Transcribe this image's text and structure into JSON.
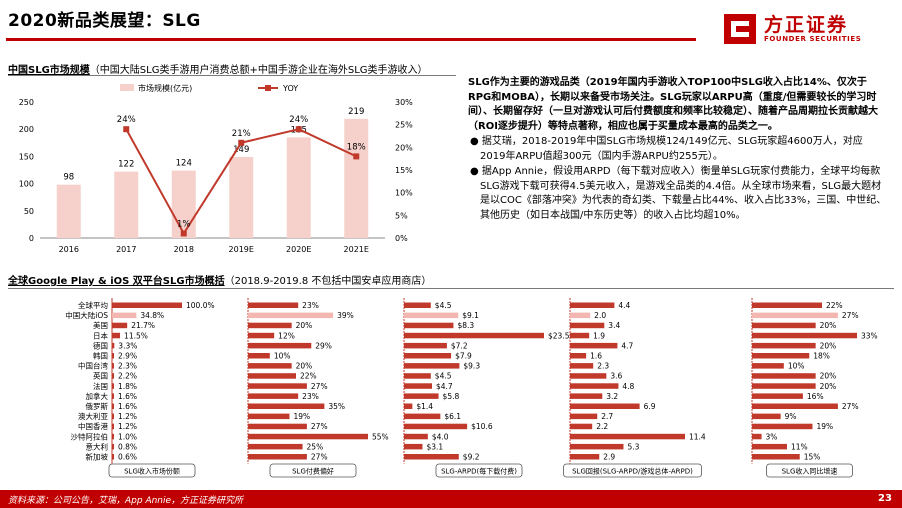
{
  "header": {
    "title": "2020新品类展望：SLG",
    "logo_cn": "方正证券",
    "logo_en": "FOUNDER SECURITIES"
  },
  "top_chart_title": {
    "bold": "中国SLG市场规模",
    "rest": "（中国大陆SLG类手游用户消费总额+中国手游企业在海外SLG类手游收入）"
  },
  "bottom_chart_title": {
    "bold": "全球Google Play & iOS 双平台SLG市场概括",
    "rest": "（2018.9-2019.8 不包括中国安卓应用商店）"
  },
  "right_text": {
    "intro": "SLG作为主要的游戏品类（2019年国内手游收入TOP100中SLG收入占比14%、仅次于RPG和MOBA），长期以来备受市场关注。SLG玩家以ARPU高（重度/但需要较长的学习时间）、长期留存好（一旦对游戏认可后付费额度和频率比较稳定）、随着产品周期拉长贡献越大（ROI逐步提升）等特点著称，相应也属于买量成本最高的品类之一。",
    "bullet1": "据艾瑞，2018-2019年中国SLG市场规模124/149亿元、SLG玩家超4600万人，对应2019年ARPU值超300元（国内手游ARPU约255元）。",
    "bullet2": "据App Annie，假设用ARPD（每下载对应收入）衡量单SLG玩家付费能力，全球平均每款SLG游戏下载可获得4.5美元收入，是游戏全品类的4.4倍。从全球市场来看，SLG最大题材是以COC《部落冲突》为代表的奇幻类、下载量占比44%、收入占比33%，三国、中世纪、其他历史（如日本战国/中东历史等）的收入占比均超10%。"
  },
  "chart_data": [
    {
      "type": "bar",
      "title": "",
      "categories": [
        "2016",
        "2017",
        "2018",
        "2019E",
        "2020E",
        "2021E"
      ],
      "series": [
        {
          "name": "市场规模(亿元)",
          "type": "bar",
          "values": [
            98,
            122,
            124,
            149,
            185,
            219
          ],
          "color": "#f6d1cc"
        },
        {
          "name": "YOY",
          "type": "line",
          "axis": "right",
          "values": [
            null,
            24,
            1,
            21,
            24,
            18
          ],
          "color": "#c0392b"
        }
      ],
      "ylim": [
        0,
        250
      ],
      "yticks": [
        "0",
        "50",
        "100",
        "150",
        "200",
        "250"
      ],
      "y2lim": [
        0,
        30
      ],
      "y2ticks": [
        "0%",
        "5%",
        "10%",
        "15%",
        "20%",
        "25%",
        "30%"
      ],
      "yoy_labels": [
        "",
        "24%",
        "1%",
        "21%",
        "24%",
        "18%"
      ],
      "legend": "top"
    },
    {
      "type": "bar",
      "orientation": "horizontal",
      "categories": [
        "全球平均",
        "中国大陆iOS",
        "美国",
        "日本",
        "德国",
        "韩国",
        "中国台湾",
        "英国",
        "法国",
        "加拿大",
        "俄罗斯",
        "澳大利亚",
        "中国香港",
        "沙特阿拉伯",
        "意大利",
        "新加坡"
      ],
      "panels": [
        {
          "name": "SLG收入市场份额",
          "values": [
            100.0,
            34.8,
            21.7,
            11.5,
            3.3,
            2.9,
            2.3,
            2.2,
            1.8,
            1.6,
            1.6,
            1.2,
            1.2,
            1.0,
            0.8,
            0.6
          ],
          "labels": [
            "100.0%",
            "34.8%",
            "21.7%",
            "11.5%",
            "3.3%",
            "2.9%",
            "2.3%",
            "2.2%",
            "1.8%",
            "1.6%",
            "1.6%",
            "1.2%",
            "1.2%",
            "1.0%",
            "0.8%",
            "0.6%"
          ],
          "max": 100
        },
        {
          "name": "SLG付费偏好",
          "values": [
            23,
            39,
            20,
            12,
            29,
            10,
            20,
            22,
            27,
            23,
            35,
            19,
            27,
            55,
            25,
            27
          ],
          "labels": [
            "23%",
            "39%",
            "20%",
            "12%",
            "29%",
            "10%",
            "20%",
            "22%",
            "27%",
            "23%",
            "35%",
            "19%",
            "27%",
            "55%",
            "25%",
            "27%"
          ],
          "max": 55
        },
        {
          "name": "SLG-ARPD(每下载付费)",
          "values": [
            4.5,
            9.1,
            8.3,
            23.5,
            7.2,
            7.9,
            9.3,
            4.5,
            4.7,
            5.8,
            1.4,
            6.1,
            10.6,
            4.0,
            3.1,
            9.2
          ],
          "labels": [
            "$4.5",
            "$9.1",
            "$8.3",
            "$23.5",
            "$7.2",
            "$7.9",
            "$9.3",
            "$4.5",
            "$4.7",
            "$5.8",
            "$1.4",
            "$6.1",
            "$10.6",
            "$4.0",
            "$3.1",
            "$9.2"
          ],
          "max": 23.5
        },
        {
          "name": "SLG回报(SLG-ARPD/游戏总体-ARPD)",
          "values": [
            4.4,
            2.0,
            3.4,
            1.9,
            4.7,
            1.6,
            2.3,
            3.6,
            4.8,
            3.2,
            6.9,
            2.7,
            2.2,
            11.4,
            5.3,
            2.9
          ],
          "labels": [
            "4.4",
            "2.0",
            "3.4",
            "1.9",
            "4.7",
            "1.6",
            "2.3",
            "3.6",
            "4.8",
            "3.2",
            "6.9",
            "2.7",
            "2.2",
            "11.4",
            "5.3",
            "2.9"
          ],
          "max": 11.4
        },
        {
          "name": "SLG收入同比增速",
          "values": [
            22,
            27,
            20,
            33,
            20,
            18,
            10,
            20,
            20,
            16,
            27,
            9,
            19,
            3,
            11,
            15
          ],
          "labels": [
            "22%",
            "27%",
            "20%",
            "33%",
            "20%",
            "18%",
            "10%",
            "20%",
            "20%",
            "16%",
            "27%",
            "9%",
            "19%",
            "3%",
            "11%",
            "15%"
          ],
          "max": 33
        }
      ],
      "highlight_index": 1,
      "colors": {
        "main": "#c0392b",
        "highlight": "#f4b6b0"
      }
    }
  ],
  "footer": {
    "source": "资料来源：公司公告，艾瑞，App Annie，方正证券研究所",
    "page": "23"
  }
}
